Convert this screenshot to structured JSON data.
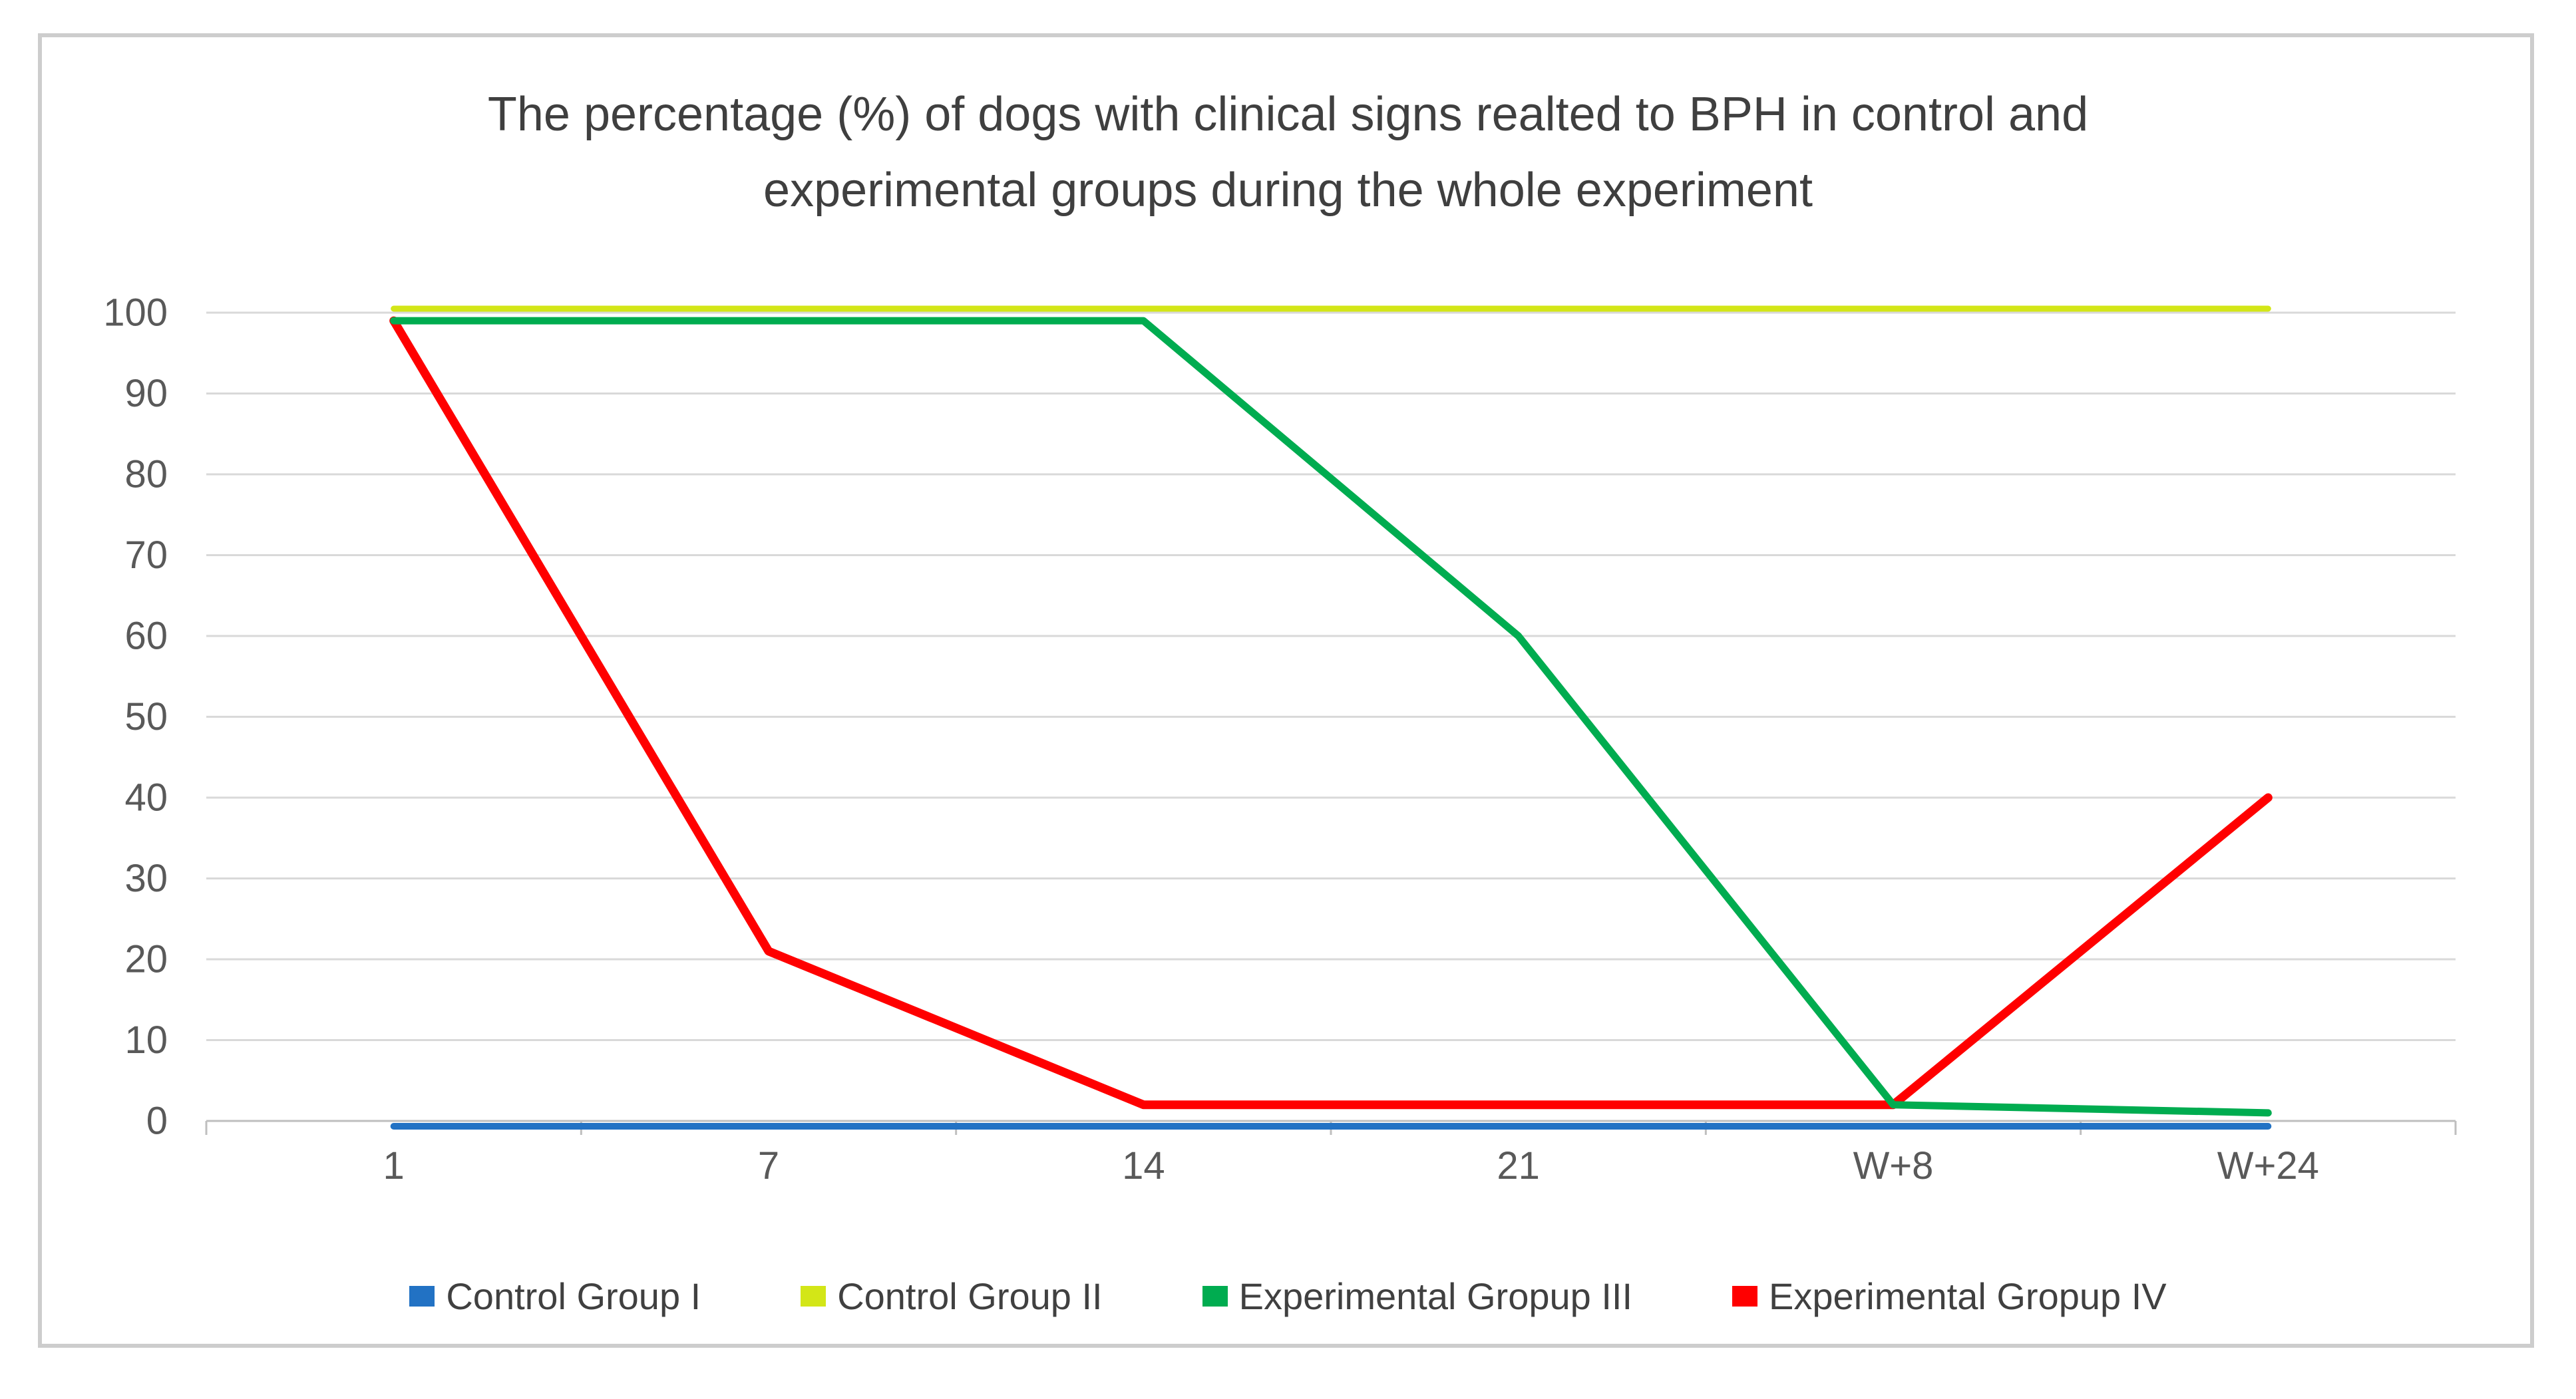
{
  "chart_data": {
    "type": "line",
    "title": "The percentage (%) of dogs with clinical signs realted to BPH in control and experimental groups during the whole experiment",
    "categories": [
      "1",
      "7",
      "14",
      "21",
      "W+8",
      "W+24"
    ],
    "series": [
      {
        "name": "Control Group I",
        "color": "#2272C4",
        "values": [
          0,
          0,
          0,
          0,
          0,
          0
        ]
      },
      {
        "name": "Control Group II",
        "color": "#D3E617",
        "values": [
          100,
          100,
          100,
          100,
          100,
          100
        ]
      },
      {
        "name": "Experimental Gropup III",
        "color": "#00AC50",
        "values": [
          99,
          99,
          99,
          60,
          2,
          1
        ]
      },
      {
        "name": "Experimental Gropup IV",
        "color": "#FF0000",
        "values": [
          99,
          21,
          2,
          2,
          2,
          40
        ]
      }
    ],
    "xlabel": "",
    "ylabel": "",
    "ylim": [
      0,
      100
    ],
    "y_ticks": [
      0,
      10,
      20,
      30,
      40,
      50,
      60,
      70,
      80,
      90,
      100
    ],
    "grid": "horizontal",
    "legend_position": "bottom",
    "colors": {
      "gridline": "#D9D9D9",
      "axis_line": "#BFBFBF",
      "tick_label": "#595959",
      "title_text": "#3F3F3F",
      "legend_text": "#404040",
      "frame_border": "#CDCDCD"
    }
  }
}
